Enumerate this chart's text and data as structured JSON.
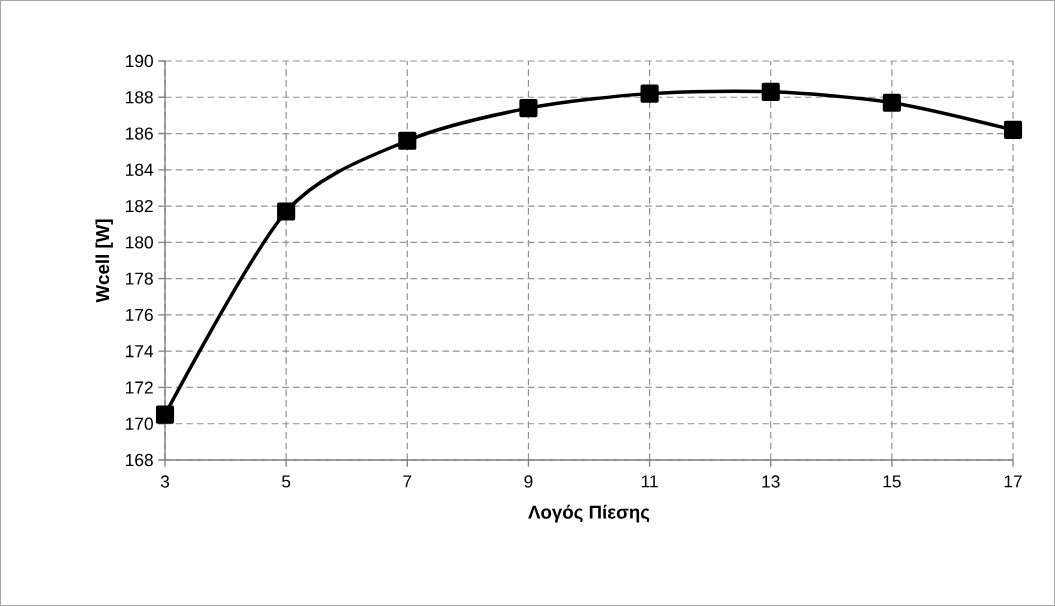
{
  "chart_data": {
    "type": "line",
    "xlabel": "Λογός Πίεσης",
    "ylabel": "Wcell [W]",
    "x": [
      3,
      5,
      7,
      9,
      11,
      13,
      15,
      17
    ],
    "series": [
      {
        "color": "#000000",
        "values": [
          170.5,
          181.7,
          185.6,
          187.4,
          188.2,
          188.3,
          187.7,
          186.2
        ]
      }
    ],
    "xlim": [
      3,
      17
    ],
    "ylim": [
      168,
      190
    ],
    "xticks": [
      3,
      5,
      7,
      9,
      11,
      13,
      15,
      17
    ],
    "yticks": [
      168,
      170,
      172,
      174,
      176,
      178,
      180,
      182,
      184,
      186,
      188,
      190
    ],
    "grid": true,
    "marker": "square",
    "line_style": "solid"
  }
}
